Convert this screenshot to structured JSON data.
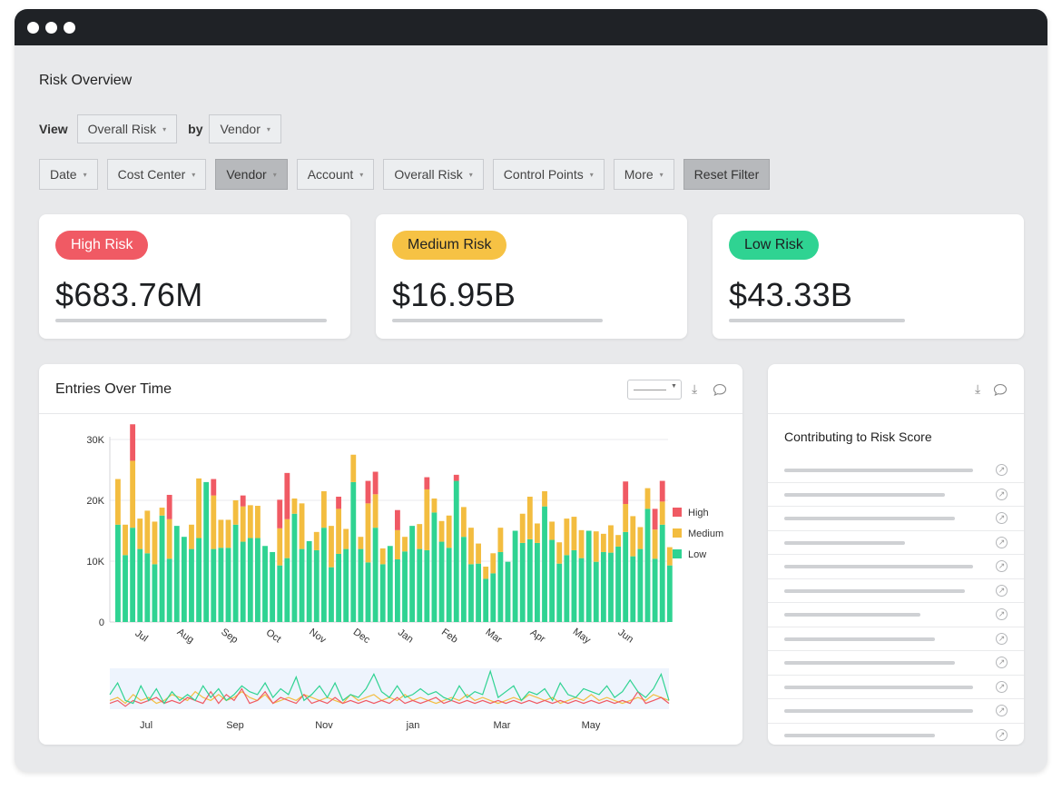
{
  "page": {
    "title": "Risk Overview"
  },
  "view": {
    "label": "View",
    "metric": "Overall Risk",
    "by_label": "by",
    "dimension": "Vendor"
  },
  "filters": [
    {
      "label": "Date",
      "active": false
    },
    {
      "label": "Cost Center",
      "active": false
    },
    {
      "label": "Vendor",
      "active": true
    },
    {
      "label": "Account",
      "active": false
    },
    {
      "label": "Overall Risk",
      "active": false
    },
    {
      "label": "Control Points",
      "active": false
    },
    {
      "label": "More",
      "active": false
    }
  ],
  "reset_label": "Reset Filter",
  "cards": [
    {
      "label": "High Risk",
      "amount": "$683.76M",
      "color": "#f05a64"
    },
    {
      "label": "Medium Risk",
      "amount": "$16.95B",
      "color": "#f6c244"
    },
    {
      "label": "Low Risk",
      "amount": "$43.33B",
      "color": "#2fd392"
    }
  ],
  "entries_panel": {
    "title": "Entries Over Time"
  },
  "contrib_panel": {
    "title": "Contributing to Risk Score",
    "row_count": 12
  },
  "colors": {
    "high": "#f05a64",
    "medium": "#f3bd40",
    "low": "#2fd392",
    "nav_bg": "#eef4fd"
  },
  "chart_data": {
    "type": "bar",
    "stacked": true,
    "ylim": [
      0,
      30000
    ],
    "yticks": [
      "0",
      "10K",
      "20K",
      "30K"
    ],
    "xticks": [
      "Jul",
      "Aug",
      "Sep",
      "Oct",
      "Nov",
      "Dec",
      "Jan",
      "Feb",
      "Mar",
      "Apr",
      "May",
      "Jun"
    ],
    "legend_position": "right",
    "series": [
      {
        "name": "Low",
        "values": [
          16000,
          11000,
          15500,
          12000,
          11300,
          9500,
          17500,
          10400,
          15800,
          14000,
          12000,
          13800,
          23000,
          12000,
          12200,
          12200,
          16000,
          13200,
          13800,
          13800,
          12500,
          11500,
          9300,
          10500,
          17800,
          12000,
          13300,
          11800,
          15500,
          9000,
          11200,
          12000,
          23000,
          12000,
          9800,
          15500,
          9500,
          12500,
          10300,
          11600,
          15800,
          12000,
          11800,
          18000,
          13200,
          12200,
          23200,
          14000,
          9500,
          9600,
          7100,
          8000,
          11500,
          9900,
          15000,
          13000,
          13600,
          13000,
          19000,
          13500,
          9600,
          11000,
          11800,
          10500,
          15000,
          9900,
          11500,
          11400,
          12400,
          14800,
          10800,
          12000,
          18600,
          10400,
          16000,
          9300
        ]
      },
      {
        "name": "Medium",
        "values": [
          7500,
          5000,
          11000,
          5000,
          7000,
          7000,
          1300,
          6500,
          0,
          0,
          4000,
          9800,
          0,
          8800,
          4600,
          4600,
          4000,
          5800,
          5400,
          5300,
          0,
          0,
          6100,
          6400,
          2500,
          7500,
          0,
          3000,
          6000,
          6800,
          7400,
          3300,
          4500,
          2000,
          9700,
          5500,
          2600,
          0,
          4800,
          2400,
          0,
          4100,
          10000,
          2300,
          3400,
          5300,
          0,
          4900,
          6000,
          3300,
          2000,
          3300,
          4000,
          0,
          0,
          4800,
          7000,
          3200,
          2500,
          3000,
          3500,
          6000,
          5500,
          4600,
          0,
          5000,
          3000,
          4500,
          1900,
          4600,
          6600,
          3600,
          3400,
          4800,
          3800,
          3000
        ]
      },
      {
        "name": "High",
        "values": [
          0,
          0,
          6000,
          0,
          0,
          0,
          0,
          4000,
          0,
          0,
          0,
          0,
          0,
          2700,
          0,
          0,
          0,
          1800,
          0,
          0,
          0,
          0,
          4700,
          7600,
          0,
          0,
          0,
          0,
          0,
          0,
          2000,
          0,
          0,
          0,
          3700,
          3700,
          0,
          0,
          3300,
          0,
          0,
          0,
          2000,
          0,
          0,
          0,
          1000,
          0,
          0,
          0,
          0,
          0,
          0,
          0,
          0,
          0,
          0,
          0,
          0,
          0,
          0,
          0,
          0,
          0,
          0,
          0,
          0,
          0,
          0,
          3700,
          0,
          0,
          0,
          3400,
          3400,
          0
        ]
      }
    ],
    "navigator": {
      "xticks": [
        "Jul",
        "Sep",
        "Nov",
        "jan",
        "Mar",
        "May"
      ],
      "series": [
        {
          "name": "Low",
          "values": [
            5,
            9,
            3,
            2,
            8,
            3,
            7,
            2,
            6,
            3,
            5,
            3,
            8,
            4,
            7,
            3,
            5,
            8,
            6,
            5,
            9,
            4,
            7,
            5,
            11,
            3,
            5,
            8,
            4,
            9,
            3,
            5,
            4,
            7,
            12,
            6,
            4,
            8,
            4,
            5,
            7,
            5,
            6,
            4,
            3,
            8,
            4,
            6,
            5,
            13,
            4,
            6,
            8,
            3,
            6,
            5,
            7,
            3,
            9,
            5,
            4,
            7,
            6,
            5,
            8,
            4,
            6,
            10,
            6,
            4,
            7,
            12,
            3
          ]
        },
        {
          "name": "Medium",
          "values": [
            3,
            4,
            2,
            5,
            3,
            4,
            2,
            3,
            5,
            4,
            3,
            6,
            4,
            3,
            5,
            3,
            4,
            6,
            4,
            3,
            5,
            2,
            3,
            4,
            3,
            5,
            4,
            3,
            4,
            3,
            2,
            5,
            3,
            4,
            5,
            3,
            4,
            3,
            5,
            3,
            4,
            3,
            2,
            3,
            4,
            3,
            5,
            3,
            4,
            3,
            2,
            3,
            4,
            3,
            5,
            4,
            3,
            4,
            2,
            3,
            4,
            3,
            5,
            3,
            4,
            3,
            2,
            3,
            4,
            3,
            5,
            4,
            3
          ]
        },
        {
          "name": "High",
          "values": [
            2,
            3,
            1,
            3,
            2,
            3,
            4,
            2,
            3,
            2,
            4,
            3,
            2,
            6,
            2,
            5,
            3,
            7,
            2,
            3,
            6,
            2,
            4,
            3,
            2,
            5,
            2,
            3,
            2,
            4,
            2,
            3,
            2,
            3,
            2,
            3,
            2,
            4,
            2,
            3,
            2,
            3,
            4,
            2,
            3,
            2,
            3,
            2,
            3,
            2,
            3,
            2,
            3,
            2,
            3,
            2,
            3,
            2,
            3,
            2,
            3,
            2,
            3,
            2,
            3,
            2,
            3,
            2,
            6,
            2,
            3,
            4,
            2
          ]
        }
      ]
    }
  }
}
